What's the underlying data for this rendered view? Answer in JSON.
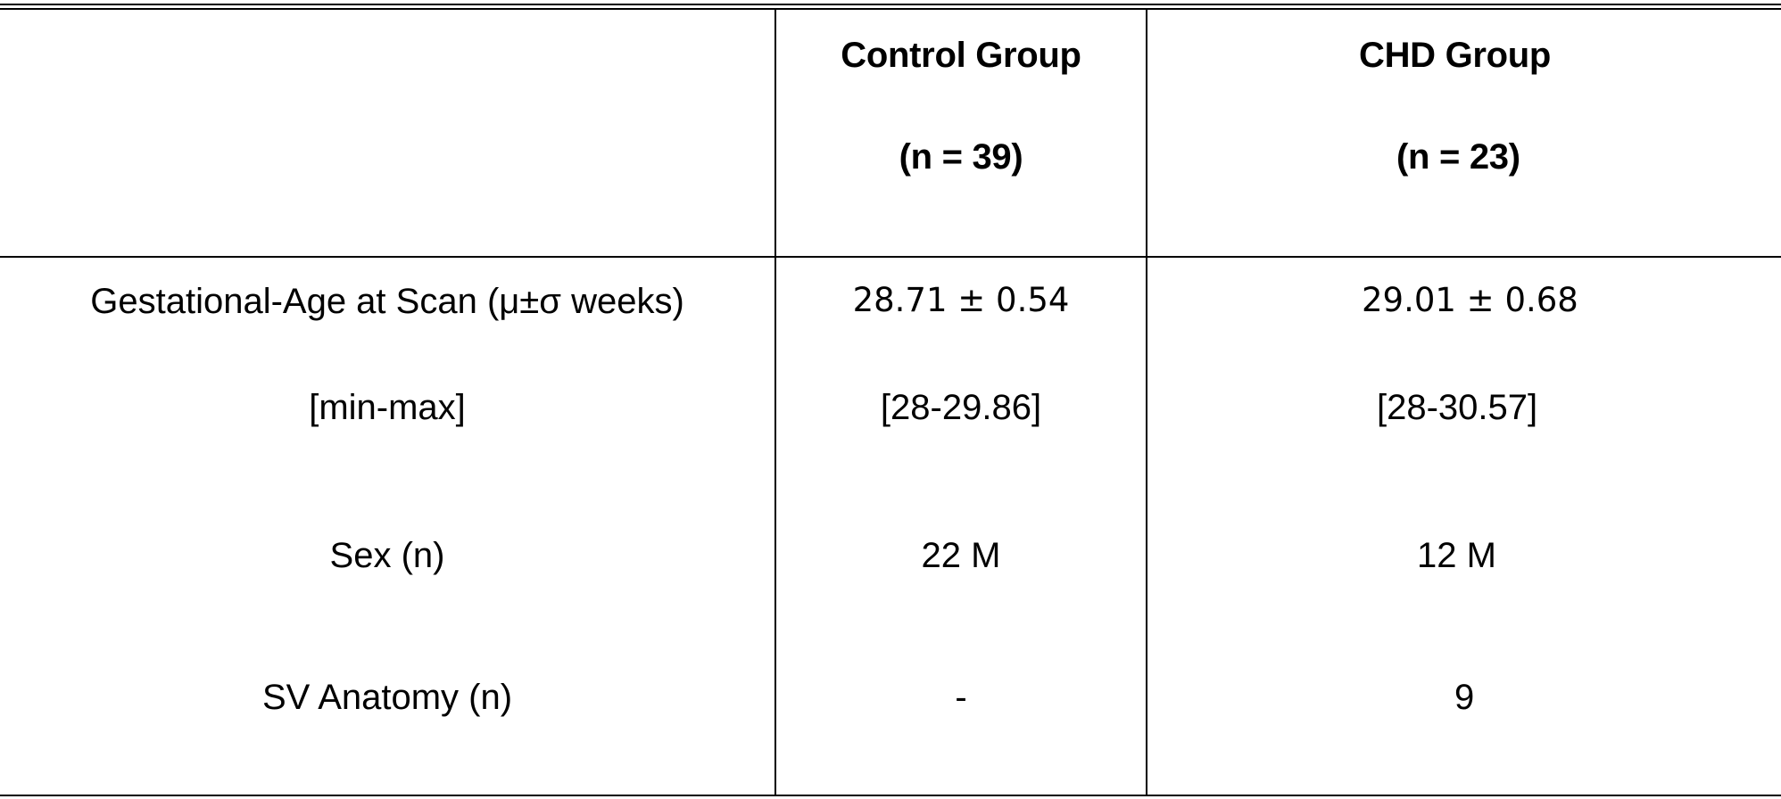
{
  "table": {
    "header": {
      "empty_corner": "",
      "control_title": "Control Group",
      "control_n": "(n = 39)",
      "chd_title": "CHD Group",
      "chd_n": "(n = 23)"
    },
    "rows": [
      {
        "label": "Gestational-Age at Scan (μ±σ weeks)",
        "control": "28.71 ± 0.54",
        "chd": "29.01 ± 0.68"
      },
      {
        "label": "[min-max]",
        "control": "[28-29.86]",
        "chd": "[28-30.57]"
      },
      {
        "label": "Sex (n)",
        "control": "22 M",
        "chd": "12 M"
      },
      {
        "label": "SV Anatomy (n)",
        "control": "-",
        "chd": "9"
      }
    ]
  }
}
